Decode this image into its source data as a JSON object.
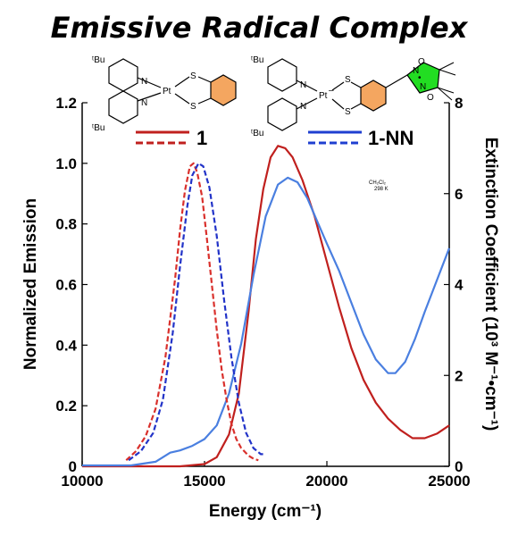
{
  "chart_data": {
    "type": "line",
    "title": "Emissive Radical Complex",
    "xlabel": "Energy (cm⁻¹)",
    "ylabel": "Normalized Emission",
    "y2label": "Extinction Coefficient (10³ M⁻¹•cm⁻¹)",
    "xlim": [
      10000,
      25000
    ],
    "ylim": [
      0,
      1.2
    ],
    "y2lim": [
      0,
      8
    ],
    "xticks": [
      "10000",
      "15000",
      "20000",
      "25000"
    ],
    "yticks": [
      "0",
      "0.2",
      "0.4",
      "0.6",
      "0.8",
      "1.0",
      "1.2"
    ],
    "y2ticks": [
      "0",
      "2",
      "4",
      "6",
      "8"
    ],
    "annotation": {
      "line1": "CH₂Cl₂",
      "line2": "298 K"
    },
    "legend": [
      {
        "name": "1",
        "color": "#c0201e"
      },
      {
        "name": "1-NN",
        "color": "#1f3fd0"
      }
    ],
    "structure_labels": {
      "tbu": "ᵗBu",
      "n": "N",
      "pt": "Pt",
      "s": "S",
      "o": "O",
      "minus": "–",
      "dot": "•"
    },
    "series": [
      {
        "name": "1",
        "style": "dashed",
        "axis": "left",
        "color": "#d9302c",
        "x": [
          11800,
          12200,
          12600,
          13000,
          13400,
          13800,
          14000,
          14200,
          14400,
          14550,
          14700,
          14900,
          15100,
          15300,
          15500,
          15700,
          15900,
          16100,
          16300,
          16500,
          16800,
          17000,
          17200
        ],
        "y": [
          0.02,
          0.05,
          0.1,
          0.19,
          0.36,
          0.62,
          0.78,
          0.91,
          0.99,
          1.0,
          0.97,
          0.89,
          0.75,
          0.6,
          0.45,
          0.32,
          0.22,
          0.14,
          0.09,
          0.06,
          0.035,
          0.025,
          0.02
        ]
      },
      {
        "name": "1-NN",
        "style": "dashed",
        "axis": "left",
        "color": "#2233c8",
        "x": [
          11900,
          12400,
          12900,
          13300,
          13700,
          14000,
          14300,
          14500,
          14750,
          14950,
          15200,
          15500,
          15800,
          16100,
          16400,
          16700,
          17000,
          17300,
          17500
        ],
        "y": [
          0.02,
          0.05,
          0.11,
          0.22,
          0.44,
          0.66,
          0.86,
          0.96,
          1.0,
          0.99,
          0.92,
          0.76,
          0.55,
          0.36,
          0.21,
          0.11,
          0.06,
          0.04,
          0.04
        ]
      },
      {
        "name": "1",
        "style": "solid",
        "axis": "right",
        "color": "#c0201e",
        "x": [
          10000,
          12000,
          14000,
          15000,
          15500,
          16000,
          16400,
          16800,
          17100,
          17400,
          17700,
          18000,
          18300,
          18600,
          19000,
          19500,
          20000,
          20500,
          21000,
          21500,
          22000,
          22500,
          23000,
          23500,
          24000,
          24500,
          25000
        ],
        "y": [
          0.0,
          0.0,
          0.0,
          0.05,
          0.2,
          0.7,
          1.6,
          3.4,
          5.0,
          6.1,
          6.8,
          7.05,
          7.0,
          6.8,
          6.3,
          5.5,
          4.5,
          3.5,
          2.6,
          1.9,
          1.4,
          1.05,
          0.8,
          0.62,
          0.62,
          0.72,
          0.9
        ]
      },
      {
        "name": "1-NN",
        "style": "solid",
        "axis": "right",
        "color": "#4a7fe0",
        "x": [
          10000,
          12000,
          13000,
          13600,
          14000,
          14500,
          15000,
          15500,
          16000,
          16500,
          17000,
          17500,
          18000,
          18400,
          18800,
          19200,
          19600,
          20000,
          20500,
          21000,
          21500,
          22000,
          22500,
          22800,
          23200,
          23600,
          24000,
          24500,
          25000
        ],
        "y": [
          0.02,
          0.02,
          0.1,
          0.3,
          0.35,
          0.45,
          0.6,
          0.9,
          1.6,
          2.7,
          4.2,
          5.5,
          6.2,
          6.35,
          6.25,
          5.9,
          5.4,
          4.9,
          4.3,
          3.6,
          2.9,
          2.35,
          2.05,
          2.05,
          2.3,
          2.8,
          3.4,
          4.1,
          4.8
        ]
      }
    ]
  }
}
